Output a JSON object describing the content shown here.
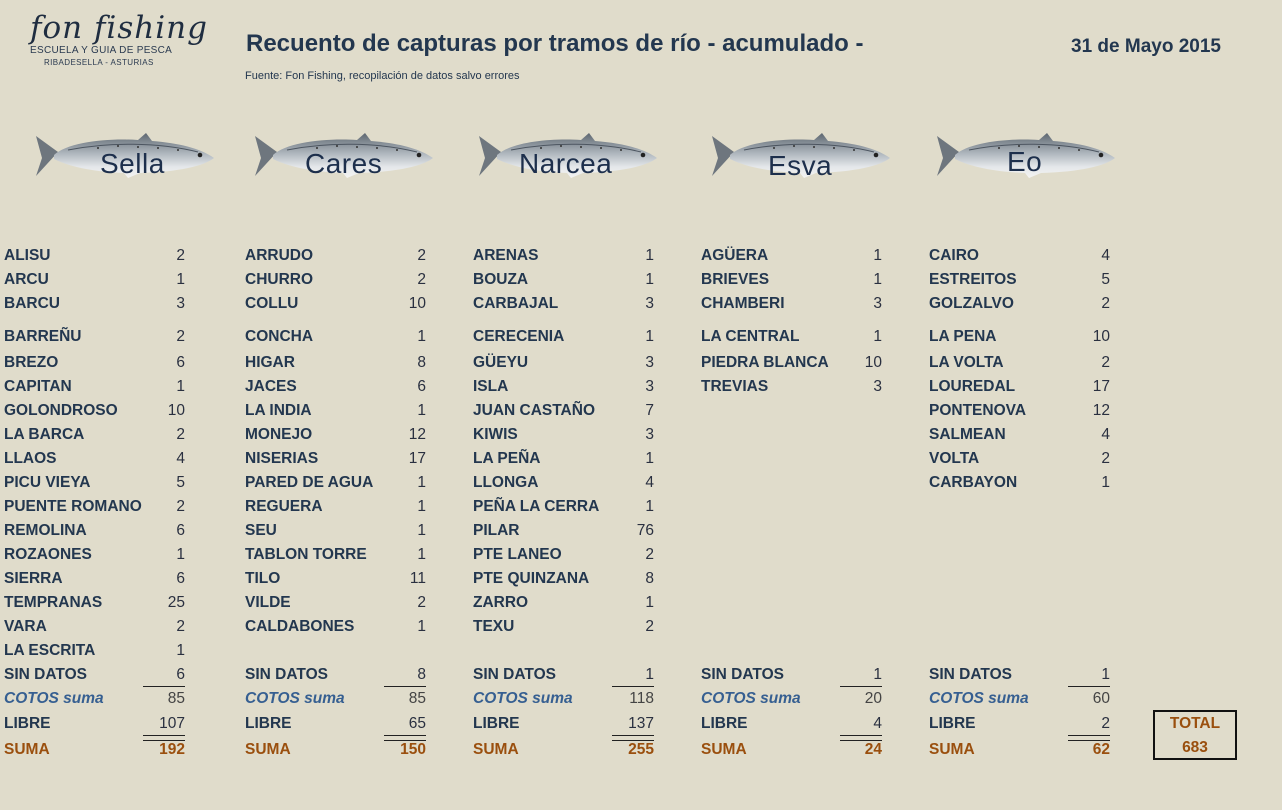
{
  "logo": {
    "main": "fon fishing",
    "line1": "ESCUELA Y GUIA DE PESCA",
    "line2": "RIBADESELLA - ASTURIAS"
  },
  "title": "Recuento de capturas por tramos de río - acumulado -",
  "date": "31 de Mayo 2015",
  "source": "Fuente: Fon Fishing, recopilación de datos salvo errores",
  "rivers": [
    {
      "name": "Sella",
      "tramos": [
        [
          "ALISU",
          "2"
        ],
        [
          "ARCU",
          "1"
        ],
        [
          "BARCU",
          "3"
        ],
        [
          "BARREÑU",
          "2"
        ],
        [
          "BREZO",
          "6"
        ],
        [
          "CAPITAN",
          "1"
        ],
        [
          "GOLONDROSO",
          "10"
        ],
        [
          "LA BARCA",
          "2"
        ],
        [
          "LLAOS",
          "4"
        ],
        [
          "PICU VIEYA",
          "5"
        ],
        [
          "PUENTE ROMANO",
          "2"
        ],
        [
          "REMOLINA",
          "6"
        ],
        [
          "ROZAONES",
          "1"
        ],
        [
          "SIERRA",
          "6"
        ],
        [
          "TEMPRANAS",
          "25"
        ],
        [
          "VARA",
          "2"
        ],
        [
          "LA ESCRITA",
          "1"
        ]
      ],
      "sin_datos": "6",
      "cotos": "85",
      "libre": "107",
      "suma": "192"
    },
    {
      "name": "Cares",
      "tramos": [
        [
          "ARRUDO",
          "2"
        ],
        [
          "CHURRO",
          "2"
        ],
        [
          "COLLU",
          "10"
        ],
        [
          "CONCHA",
          "1"
        ],
        [
          "HIGAR",
          "8"
        ],
        [
          "JACES",
          "6"
        ],
        [
          "LA INDIA",
          "1"
        ],
        [
          "MONEJO",
          "12"
        ],
        [
          "NISERIAS",
          "17"
        ],
        [
          "PARED DE AGUA",
          "1"
        ],
        [
          "REGUERA",
          "1"
        ],
        [
          "SEU",
          "1"
        ],
        [
          "TABLON TORRE",
          "1"
        ],
        [
          "TILO",
          "11"
        ],
        [
          "VILDE",
          "2"
        ],
        [
          "CALDABONES",
          "1"
        ]
      ],
      "sin_datos": "8",
      "cotos": "85",
      "libre": "65",
      "suma": "150"
    },
    {
      "name": "Narcea",
      "tramos": [
        [
          "ARENAS",
          "1"
        ],
        [
          "BOUZA",
          "1"
        ],
        [
          "CARBAJAL",
          "3"
        ],
        [
          "CERECENIA",
          "1"
        ],
        [
          "GÜEYU",
          "3"
        ],
        [
          "ISLA",
          "3"
        ],
        [
          "JUAN CASTAÑO",
          "7"
        ],
        [
          "KIWIS",
          "3"
        ],
        [
          "LA PEÑA",
          "1"
        ],
        [
          "LLONGA",
          "4"
        ],
        [
          "PEÑA LA CERRA",
          "1"
        ],
        [
          "PILAR",
          "76"
        ],
        [
          "PTE LANEO",
          "2"
        ],
        [
          "PTE QUINZANA",
          "8"
        ],
        [
          "ZARRO",
          "1"
        ],
        [
          "TEXU",
          "2"
        ]
      ],
      "sin_datos": "1",
      "cotos": "118",
      "libre": "137",
      "suma": "255"
    },
    {
      "name": "Esva",
      "tramos": [
        [
          "AGÜERA",
          "1"
        ],
        [
          "BRIEVES",
          "1"
        ],
        [
          "CHAMBERI",
          "3"
        ],
        [
          "LA CENTRAL",
          "1"
        ],
        [
          "PIEDRA BLANCA",
          "10"
        ],
        [
          "TREVIAS",
          "3"
        ]
      ],
      "sin_datos": "1",
      "cotos": "20",
      "libre": "4",
      "suma": "24"
    },
    {
      "name": "Eo",
      "tramos": [
        [
          "CAIRO",
          "4"
        ],
        [
          "ESTREITOS",
          "5"
        ],
        [
          "GOLZALVO",
          "2"
        ],
        [
          "LA PENA",
          "10"
        ],
        [
          "LA VOLTA",
          "2"
        ],
        [
          "LOUREDAL",
          "17"
        ],
        [
          "PONTENOVA",
          "12"
        ],
        [
          "SALMEAN",
          "4"
        ],
        [
          "VOLTA",
          "2"
        ],
        [
          "CARBAYON",
          "1"
        ]
      ],
      "sin_datos": "1",
      "cotos": "60",
      "libre": "2",
      "suma": "62"
    }
  ],
  "labels": {
    "sin_datos": "SIN DATOS",
    "cotos": "COTOS suma",
    "libre": "LIBRE",
    "suma": "SUMA"
  },
  "total": {
    "label": "TOTAL",
    "value": "683"
  }
}
